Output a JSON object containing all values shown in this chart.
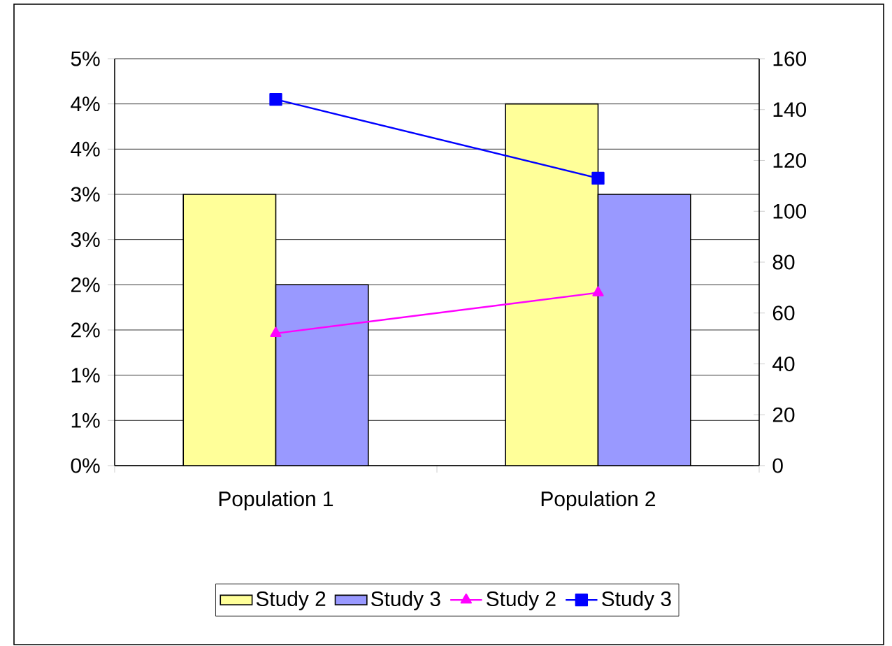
{
  "chart_data": {
    "type": "bar",
    "categories": [
      "Population 1",
      "Population 2"
    ],
    "series": [
      {
        "name": "Study 2",
        "color": "#ffff99",
        "values": [
          3.0,
          4.0
        ]
      },
      {
        "name": "Study 3",
        "color": "#9999ff",
        "values": [
          2.0,
          3.0
        ]
      },
      {
        "name": "Study 2",
        "type": "line",
        "axis": "y2",
        "marker": "triangle",
        "color": "#ff00ff",
        "values": [
          52,
          68
        ]
      },
      {
        "name": "Study 3",
        "type": "line",
        "axis": "y2",
        "marker": "square",
        "color": "#0000ff",
        "values": [
          144,
          113
        ]
      }
    ],
    "ylim": [
      0,
      4.5
    ],
    "yticks": [
      {
        "value": 0,
        "label": "0%"
      },
      {
        "value": 0.5,
        "label": "1%"
      },
      {
        "value": 1,
        "label": "1%"
      },
      {
        "value": 1.5,
        "label": "2%"
      },
      {
        "value": 2,
        "label": "2%"
      },
      {
        "value": 2.5,
        "label": "3%"
      },
      {
        "value": 3,
        "label": "3%"
      },
      {
        "value": 3.5,
        "label": "4%"
      },
      {
        "value": 4,
        "label": "4%"
      },
      {
        "value": 4.5,
        "label": "5%"
      }
    ],
    "y2lim": [
      0,
      160
    ],
    "y2ticks": [
      0,
      20,
      40,
      60,
      80,
      100,
      120,
      140,
      160
    ],
    "grid": "y",
    "legend": "bottom"
  }
}
